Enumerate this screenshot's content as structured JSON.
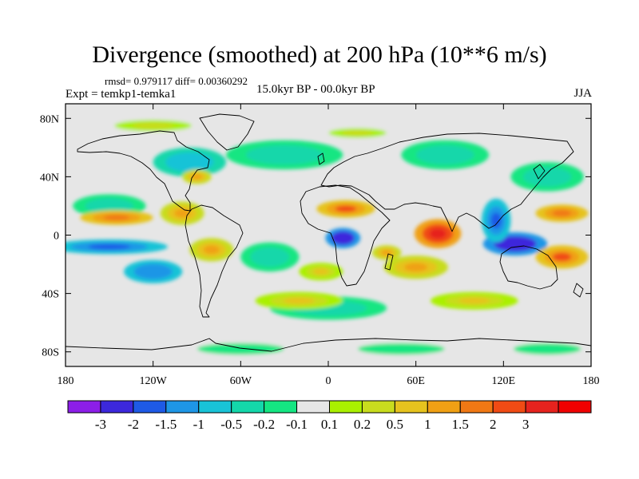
{
  "plot": {
    "title": "Divergence (smoothed) at 200 hPa (10**6 m/s)",
    "stats": "rmsd= 0.979117 diff= 0.00360292",
    "experiment": "Expt = temkp1-temka1",
    "period": "15.0kyr BP - 00.0kyr BP",
    "season": "JJA"
  },
  "map": {
    "lon_range": [
      -180,
      180
    ],
    "lat_range": [
      -90,
      90
    ],
    "x_ticks": [
      {
        "value": -180,
        "label": "180"
      },
      {
        "value": -120,
        "label": "120W"
      },
      {
        "value": -60,
        "label": "60W"
      },
      {
        "value": 0,
        "label": "0"
      },
      {
        "value": 60,
        "label": "60E"
      },
      {
        "value": 120,
        "label": "120E"
      },
      {
        "value": 180,
        "label": "180"
      }
    ],
    "y_ticks": [
      {
        "value": 80,
        "label": "80N"
      },
      {
        "value": 40,
        "label": "40N"
      },
      {
        "value": 0,
        "label": "0"
      },
      {
        "value": -40,
        "label": "40S"
      },
      {
        "value": -80,
        "label": "80S"
      }
    ],
    "features": [
      {
        "lon": 10,
        "lat": -2,
        "value": -3,
        "rx": 12,
        "ry": 7
      },
      {
        "lon": 128,
        "lat": -6,
        "value": -3,
        "rx": 22,
        "ry": 8
      },
      {
        "lon": 115,
        "lat": 10,
        "value": -2,
        "rx": 10,
        "ry": 15
      },
      {
        "lon": -150,
        "lat": -8,
        "value": -2,
        "rx": 40,
        "ry": 5
      },
      {
        "lon": -120,
        "lat": -25,
        "value": -1.5,
        "rx": 20,
        "ry": 8
      },
      {
        "lon": -95,
        "lat": 50,
        "value": -1,
        "rx": 25,
        "ry": 10
      },
      {
        "lon": -30,
        "lat": 55,
        "value": -0.5,
        "rx": 40,
        "ry": 10
      },
      {
        "lon": -150,
        "lat": 20,
        "value": -0.5,
        "rx": 25,
        "ry": 8
      },
      {
        "lon": -40,
        "lat": -15,
        "value": -0.5,
        "rx": 20,
        "ry": 10
      },
      {
        "lon": 150,
        "lat": 40,
        "value": -0.5,
        "rx": 25,
        "ry": 10
      },
      {
        "lon": 0,
        "lat": -50,
        "value": -0.5,
        "rx": 40,
        "ry": 8
      },
      {
        "lon": 80,
        "lat": 55,
        "value": -0.5,
        "rx": 30,
        "ry": 10
      },
      {
        "lon": -60,
        "lat": -78,
        "value": -0.2,
        "rx": 45,
        "ry": 6
      },
      {
        "lon": 50,
        "lat": -78,
        "value": -0.2,
        "rx": 45,
        "ry": 6
      },
      {
        "lon": 150,
        "lat": -78,
        "value": -0.2,
        "rx": 35,
        "ry": 6
      },
      {
        "lon": 75,
        "lat": 1,
        "value": 3,
        "rx": 16,
        "ry": 10
      },
      {
        "lon": 12,
        "lat": 18,
        "value": 2,
        "rx": 20,
        "ry": 6
      },
      {
        "lon": -145,
        "lat": 12,
        "value": 1.5,
        "rx": 25,
        "ry": 5
      },
      {
        "lon": 160,
        "lat": 15,
        "value": 1.5,
        "rx": 18,
        "ry": 6
      },
      {
        "lon": 160,
        "lat": -15,
        "value": 2,
        "rx": 18,
        "ry": 8
      },
      {
        "lon": 60,
        "lat": -22,
        "value": 1,
        "rx": 22,
        "ry": 8
      },
      {
        "lon": -100,
        "lat": 15,
        "value": 1,
        "rx": 15,
        "ry": 8
      },
      {
        "lon": -80,
        "lat": -10,
        "value": 1,
        "rx": 15,
        "ry": 8
      },
      {
        "lon": 40,
        "lat": -12,
        "value": 1,
        "rx": 10,
        "ry": 5
      },
      {
        "lon": -5,
        "lat": -25,
        "value": 0.5,
        "rx": 15,
        "ry": 6
      },
      {
        "lon": -90,
        "lat": 40,
        "value": 1,
        "rx": 10,
        "ry": 5
      },
      {
        "lon": -20,
        "lat": -45,
        "value": 0.5,
        "rx": 30,
        "ry": 6
      },
      {
        "lon": 100,
        "lat": -45,
        "value": 0.5,
        "rx": 30,
        "ry": 6
      },
      {
        "lon": -120,
        "lat": 75,
        "value": 0.2,
        "rx": 40,
        "ry": 6
      },
      {
        "lon": 20,
        "lat": 70,
        "value": 0.2,
        "rx": 30,
        "ry": 5
      }
    ]
  },
  "colorbar": {
    "colors": [
      "#8c1ee8",
      "#3c28dc",
      "#1e5ae6",
      "#1e96e6",
      "#19c3d7",
      "#14d7aa",
      "#14e682",
      "#e6e6e6",
      "#aaf000",
      "#c8dc1e",
      "#e6c31e",
      "#f0a014",
      "#f07814",
      "#f04b14",
      "#e6231e",
      "#f00000"
    ],
    "labels": [
      "-3",
      "-2",
      "-1.5",
      "-1",
      "-0.5",
      "-0.2",
      "-0.1",
      "0.1",
      "0.2",
      "0.5",
      "1",
      "1.5",
      "2",
      "3"
    ],
    "levels": [
      -3,
      -2,
      -1.5,
      -1,
      -0.5,
      -0.2,
      -0.1,
      0.1,
      0.2,
      0.5,
      1,
      1.5,
      2,
      3
    ]
  }
}
